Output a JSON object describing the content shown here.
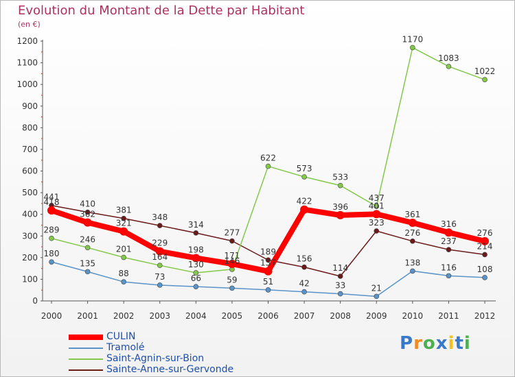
{
  "header": {
    "title": "Evolution du Montant de la Dette par Habitant",
    "unit": "(en €)"
  },
  "chart_data": {
    "type": "line",
    "title": "Evolution du Montant de la Dette par Habitant",
    "ylabel": "(en €)",
    "xlabel": "",
    "categories": [
      "2000",
      "2001",
      "2002",
      "2003",
      "2004",
      "2005",
      "2006",
      "2007",
      "2008",
      "2009",
      "2010",
      "2011",
      "2012"
    ],
    "ylim": [
      0,
      1200
    ],
    "yticks": [
      0,
      100,
      200,
      300,
      400,
      500,
      600,
      700,
      800,
      900,
      1000,
      1100,
      1200
    ],
    "grid": false,
    "legend_position": "bottom-left",
    "series": [
      {
        "name": "Sainte-Anne-sur-Gervonde",
        "color": "#6b1a1a",
        "values": [
          441,
          410,
          381,
          348,
          314,
          277,
          189,
          156,
          114,
          323,
          276,
          237,
          214
        ]
      },
      {
        "name": "Saint-Agnin-sur-Bion",
        "color": "#84c84a",
        "values": [
          289,
          246,
          201,
          164,
          130,
          146,
          622,
          573,
          533,
          437,
          1170,
          1083,
          1022
        ]
      },
      {
        "name": "Tramolé",
        "color": "#5a93c8",
        "values": [
          180,
          135,
          88,
          73,
          66,
          59,
          51,
          42,
          33,
          21,
          138,
          116,
          108
        ]
      },
      {
        "name": "CULIN",
        "color": "#ff0000",
        "values": [
          418,
          362,
          321,
          229,
          198,
          171,
          137,
          422,
          396,
          401,
          361,
          316,
          276
        ]
      }
    ],
    "data_labels": [
      {
        "series": 0,
        "index": 0,
        "text": "441"
      },
      {
        "series": 0,
        "index": 1,
        "text": "410"
      },
      {
        "series": 0,
        "index": 2,
        "text": "381"
      },
      {
        "series": 0,
        "index": 3,
        "text": "348"
      },
      {
        "series": 0,
        "index": 4,
        "text": "314"
      },
      {
        "series": 0,
        "index": 5,
        "text": "277"
      },
      {
        "series": 0,
        "index": 6,
        "text": "189"
      },
      {
        "series": 0,
        "index": 7,
        "text": "156"
      },
      {
        "series": 0,
        "index": 8,
        "text": "114"
      },
      {
        "series": 0,
        "index": 9,
        "text": "323"
      },
      {
        "series": 0,
        "index": 10,
        "text": "276"
      },
      {
        "series": 0,
        "index": 11,
        "text": "237"
      },
      {
        "series": 0,
        "index": 12,
        "text": "214"
      },
      {
        "series": 1,
        "index": 0,
        "text": "289"
      },
      {
        "series": 1,
        "index": 1,
        "text": "246"
      },
      {
        "series": 1,
        "index": 2,
        "text": "201"
      },
      {
        "series": 1,
        "index": 3,
        "text": "164"
      },
      {
        "series": 1,
        "index": 4,
        "text": "130"
      },
      {
        "series": 1,
        "index": 5,
        "text": "146"
      },
      {
        "series": 1,
        "index": 6,
        "text": "622"
      },
      {
        "series": 1,
        "index": 7,
        "text": "573"
      },
      {
        "series": 1,
        "index": 8,
        "text": "533"
      },
      {
        "series": 1,
        "index": 9,
        "text": "437"
      },
      {
        "series": 1,
        "index": 10,
        "text": "1170"
      },
      {
        "series": 1,
        "index": 11,
        "text": "1083"
      },
      {
        "series": 1,
        "index": 12,
        "text": "1022"
      },
      {
        "series": 2,
        "index": 0,
        "text": "180"
      },
      {
        "series": 2,
        "index": 1,
        "text": "135"
      },
      {
        "series": 2,
        "index": 2,
        "text": "88"
      },
      {
        "series": 2,
        "index": 3,
        "text": "73"
      },
      {
        "series": 2,
        "index": 4,
        "text": "66"
      },
      {
        "series": 2,
        "index": 5,
        "text": "59"
      },
      {
        "series": 2,
        "index": 6,
        "text": "51"
      },
      {
        "series": 2,
        "index": 7,
        "text": "42"
      },
      {
        "series": 2,
        "index": 8,
        "text": "33"
      },
      {
        "series": 2,
        "index": 9,
        "text": "21"
      },
      {
        "series": 2,
        "index": 10,
        "text": "138"
      },
      {
        "series": 2,
        "index": 11,
        "text": "116"
      },
      {
        "series": 2,
        "index": 12,
        "text": "108"
      },
      {
        "series": 3,
        "index": 0,
        "text": "418"
      },
      {
        "series": 3,
        "index": 1,
        "text": "362"
      },
      {
        "series": 3,
        "index": 2,
        "text": "321"
      },
      {
        "series": 3,
        "index": 3,
        "text": "229"
      },
      {
        "series": 3,
        "index": 4,
        "text": "198"
      },
      {
        "series": 3,
        "index": 5,
        "text": "171"
      },
      {
        "series": 3,
        "index": 6,
        "text": "137"
      },
      {
        "series": 3,
        "index": 7,
        "text": "422"
      },
      {
        "series": 3,
        "index": 8,
        "text": "396"
      },
      {
        "series": 3,
        "index": 9,
        "text": "401"
      },
      {
        "series": 3,
        "index": 10,
        "text": "361"
      },
      {
        "series": 3,
        "index": 11,
        "text": "316"
      },
      {
        "series": 3,
        "index": 12,
        "text": "276"
      }
    ]
  },
  "legend": {
    "items": [
      {
        "label": "CULIN",
        "color": "#ff0000"
      },
      {
        "label": "Tramolé",
        "color": "#5a93c8"
      },
      {
        "label": "Saint-Agnin-sur-Bion",
        "color": "#84c84a"
      },
      {
        "label": "Sainte-Anne-sur-Gervonde",
        "color": "#6b1a1a"
      }
    ]
  },
  "brand": {
    "letters": [
      "P",
      "r",
      "o",
      "x",
      "i",
      "t",
      "i"
    ],
    "colors": [
      "#3a78c8",
      "#f08a24",
      "#4caf50",
      "#3a78c8",
      "#f0c020",
      "#3a78c8",
      "#4caf50"
    ]
  }
}
